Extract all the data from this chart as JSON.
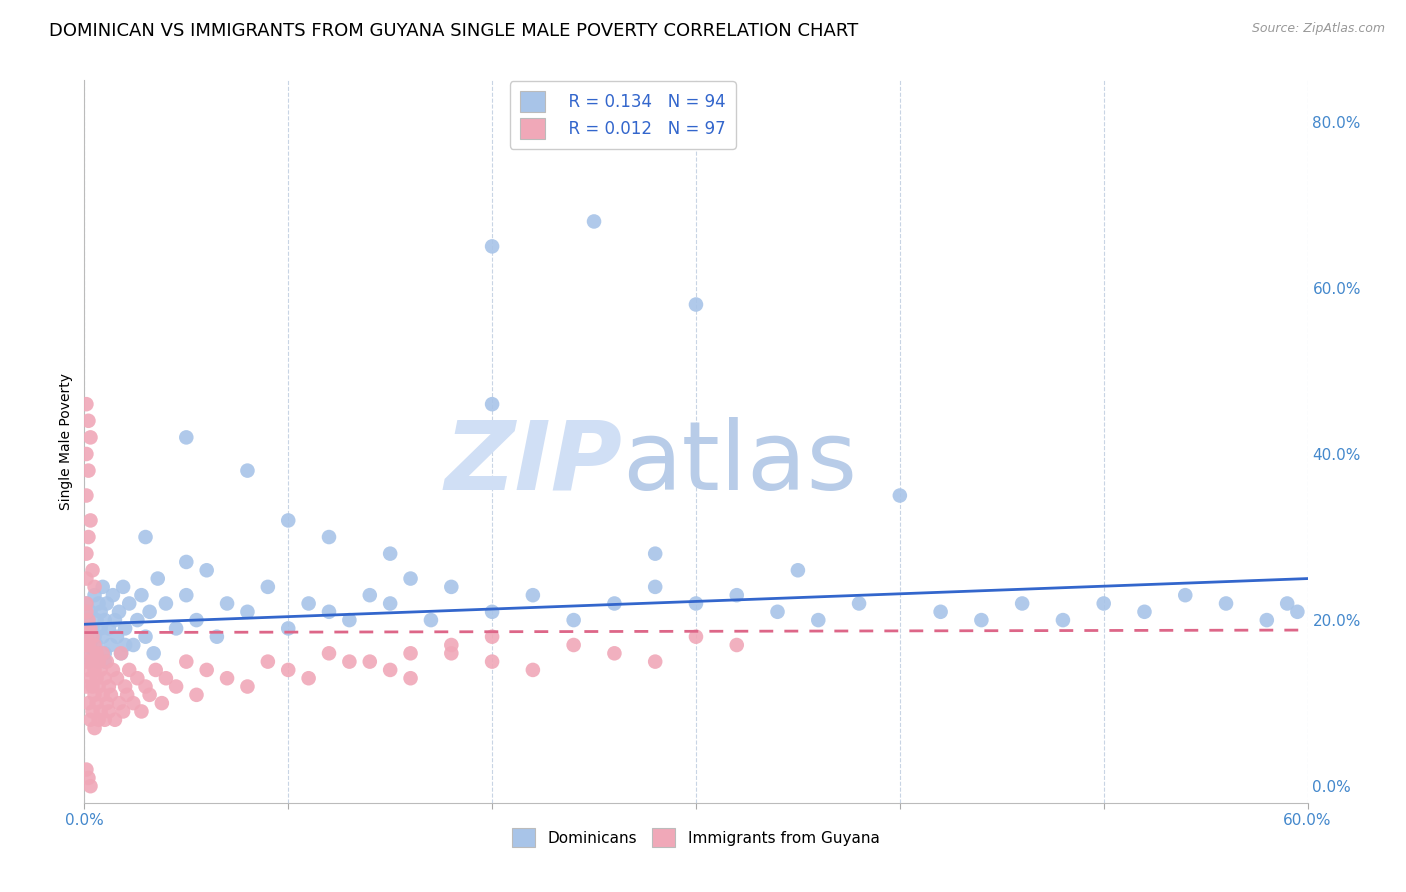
{
  "title": "DOMINICAN VS IMMIGRANTS FROM GUYANA SINGLE MALE POVERTY CORRELATION CHART",
  "source": "Source: ZipAtlas.com",
  "ylabel": "Single Male Poverty",
  "legend_labels": [
    "Dominicans",
    "Immigrants from Guyana"
  ],
  "r_dominican": 0.134,
  "n_dominican": 94,
  "r_guyana": 0.012,
  "n_guyana": 97,
  "blue_color": "#a8c4e8",
  "pink_color": "#f0a8b8",
  "blue_line_color": "#3366cc",
  "pink_line_color": "#dd6688",
  "watermark_zip": "ZIP",
  "watermark_atlas": "atlas",
  "watermark_color": "#d0dff5",
  "title_fontsize": 13,
  "axis_label_fontsize": 10,
  "tick_label_color": "#4488cc",
  "grid_color": "#c8d4e4",
  "xlim": [
    0.0,
    0.6
  ],
  "ylim": [
    -0.02,
    0.85
  ],
  "x_ticks": [
    0.0,
    0.1,
    0.2,
    0.3,
    0.4,
    0.5,
    0.6
  ],
  "y_ticks_right": [
    0.0,
    0.2,
    0.4,
    0.6,
    0.8
  ],
  "background_color": "#ffffff",
  "dom_x": [
    0.001,
    0.001,
    0.002,
    0.002,
    0.003,
    0.003,
    0.004,
    0.004,
    0.005,
    0.005,
    0.006,
    0.006,
    0.007,
    0.007,
    0.008,
    0.008,
    0.009,
    0.009,
    0.01,
    0.01,
    0.011,
    0.012,
    0.013,
    0.014,
    0.015,
    0.016,
    0.017,
    0.018,
    0.019,
    0.02,
    0.022,
    0.024,
    0.026,
    0.028,
    0.03,
    0.032,
    0.034,
    0.036,
    0.04,
    0.045,
    0.05,
    0.055,
    0.06,
    0.065,
    0.07,
    0.08,
    0.09,
    0.1,
    0.11,
    0.12,
    0.13,
    0.14,
    0.15,
    0.16,
    0.17,
    0.18,
    0.2,
    0.22,
    0.24,
    0.26,
    0.28,
    0.3,
    0.32,
    0.34,
    0.36,
    0.38,
    0.4,
    0.42,
    0.44,
    0.46,
    0.48,
    0.5,
    0.52,
    0.54,
    0.56,
    0.58,
    0.59,
    0.595,
    0.05,
    0.08,
    0.12,
    0.2,
    0.28,
    0.35,
    0.2,
    0.25,
    0.3,
    0.1,
    0.15,
    0.05,
    0.03,
    0.02,
    0.01,
    0.005
  ],
  "dom_y": [
    0.18,
    0.22,
    0.2,
    0.15,
    0.17,
    0.21,
    0.19,
    0.16,
    0.23,
    0.18,
    0.2,
    0.17,
    0.22,
    0.15,
    0.19,
    0.21,
    0.18,
    0.24,
    0.16,
    0.2,
    0.22,
    0.19,
    0.17,
    0.23,
    0.2,
    0.18,
    0.21,
    0.16,
    0.24,
    0.19,
    0.22,
    0.17,
    0.2,
    0.23,
    0.18,
    0.21,
    0.16,
    0.25,
    0.22,
    0.19,
    0.23,
    0.2,
    0.26,
    0.18,
    0.22,
    0.21,
    0.24,
    0.19,
    0.22,
    0.21,
    0.2,
    0.23,
    0.22,
    0.25,
    0.2,
    0.24,
    0.21,
    0.23,
    0.2,
    0.22,
    0.24,
    0.22,
    0.23,
    0.21,
    0.2,
    0.22,
    0.35,
    0.21,
    0.2,
    0.22,
    0.2,
    0.22,
    0.21,
    0.23,
    0.22,
    0.2,
    0.22,
    0.21,
    0.42,
    0.38,
    0.3,
    0.46,
    0.28,
    0.26,
    0.65,
    0.68,
    0.58,
    0.32,
    0.28,
    0.27,
    0.3,
    0.17,
    0.15,
    0.16
  ],
  "guy_x": [
    0.001,
    0.001,
    0.001,
    0.002,
    0.002,
    0.002,
    0.002,
    0.003,
    0.003,
    0.003,
    0.003,
    0.004,
    0.004,
    0.004,
    0.004,
    0.005,
    0.005,
    0.005,
    0.005,
    0.006,
    0.006,
    0.006,
    0.007,
    0.007,
    0.007,
    0.008,
    0.008,
    0.009,
    0.009,
    0.01,
    0.01,
    0.011,
    0.011,
    0.012,
    0.012,
    0.013,
    0.014,
    0.015,
    0.016,
    0.017,
    0.018,
    0.019,
    0.02,
    0.021,
    0.022,
    0.024,
    0.026,
    0.028,
    0.03,
    0.032,
    0.035,
    0.038,
    0.04,
    0.045,
    0.05,
    0.055,
    0.06,
    0.07,
    0.08,
    0.09,
    0.1,
    0.11,
    0.12,
    0.13,
    0.15,
    0.16,
    0.18,
    0.2,
    0.22,
    0.24,
    0.26,
    0.28,
    0.3,
    0.32,
    0.001,
    0.002,
    0.003,
    0.001,
    0.002,
    0.001,
    0.003,
    0.002,
    0.001,
    0.004,
    0.005,
    0.001,
    0.002,
    0.001,
    0.001,
    0.001,
    0.003,
    0.001,
    0.002,
    0.2,
    0.18,
    0.16,
    0.14
  ],
  "guy_y": [
    0.12,
    0.15,
    0.18,
    0.1,
    0.14,
    0.17,
    0.2,
    0.08,
    0.13,
    0.16,
    0.19,
    0.09,
    0.12,
    0.15,
    0.18,
    0.07,
    0.11,
    0.14,
    0.17,
    0.1,
    0.13,
    0.16,
    0.08,
    0.12,
    0.15,
    0.09,
    0.14,
    0.11,
    0.16,
    0.08,
    0.13,
    0.1,
    0.15,
    0.09,
    0.12,
    0.11,
    0.14,
    0.08,
    0.13,
    0.1,
    0.16,
    0.09,
    0.12,
    0.11,
    0.14,
    0.1,
    0.13,
    0.09,
    0.12,
    0.11,
    0.14,
    0.1,
    0.13,
    0.12,
    0.15,
    0.11,
    0.14,
    0.13,
    0.12,
    0.15,
    0.14,
    0.13,
    0.16,
    0.15,
    0.14,
    0.13,
    0.16,
    0.15,
    0.14,
    0.17,
    0.16,
    0.15,
    0.18,
    0.17,
    0.46,
    0.44,
    0.42,
    0.4,
    0.38,
    0.35,
    0.32,
    0.3,
    0.28,
    0.26,
    0.24,
    0.21,
    0.19,
    0.17,
    0.22,
    0.25,
    0.0,
    0.02,
    0.01,
    0.18,
    0.17,
    0.16,
    0.15
  ]
}
